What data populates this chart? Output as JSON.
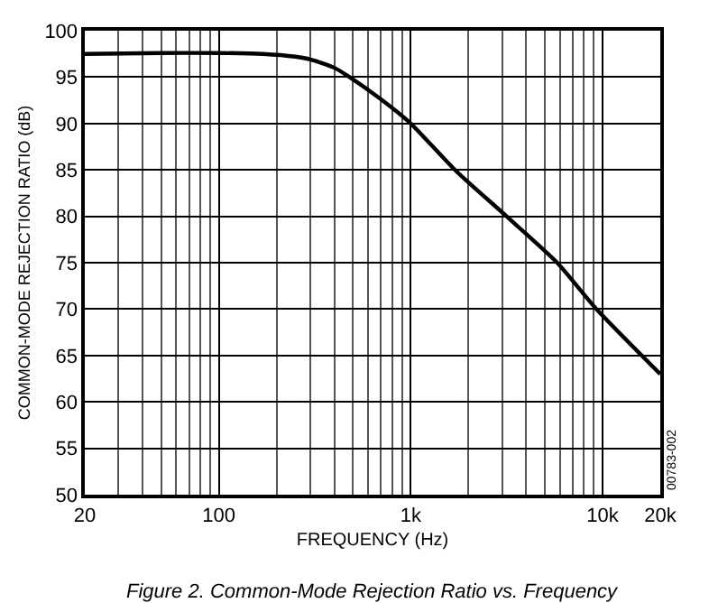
{
  "chart_data": {
    "type": "line",
    "xlabel": "FREQUENCY (Hz)",
    "ylabel": "COMMON-MODE REJECTION RATIO (dB)",
    "x": [
      20,
      50,
      100,
      170,
      250,
      300,
      400,
      480,
      700,
      1000,
      1700,
      3160,
      5800,
      9300,
      20000
    ],
    "series": [
      {
        "color": "#000000",
        "values": [
          97.5,
          97.6,
          97.6,
          97.5,
          97.2,
          96.9,
          96,
          95,
          92.6,
          90,
          85,
          80,
          75,
          70,
          63
        ]
      }
    ],
    "xlim": [
      20,
      20000
    ],
    "ylim": [
      50,
      100
    ],
    "log": "x",
    "xticks": [
      20,
      100,
      {
        "value": 1000,
        "label": "1k"
      },
      {
        "value": 10000,
        "label": "10k"
      },
      {
        "value": 20000,
        "label": "20k"
      }
    ],
    "yticks": [
      50,
      55,
      60,
      65,
      70,
      75,
      80,
      85,
      90,
      95,
      100
    ],
    "grid": true,
    "marker": "none",
    "line_style": "solid",
    "annotations": [
      "Figure 2. Common-Mode Rejection Ratio vs. Frequency",
      "00783-002"
    ]
  }
}
